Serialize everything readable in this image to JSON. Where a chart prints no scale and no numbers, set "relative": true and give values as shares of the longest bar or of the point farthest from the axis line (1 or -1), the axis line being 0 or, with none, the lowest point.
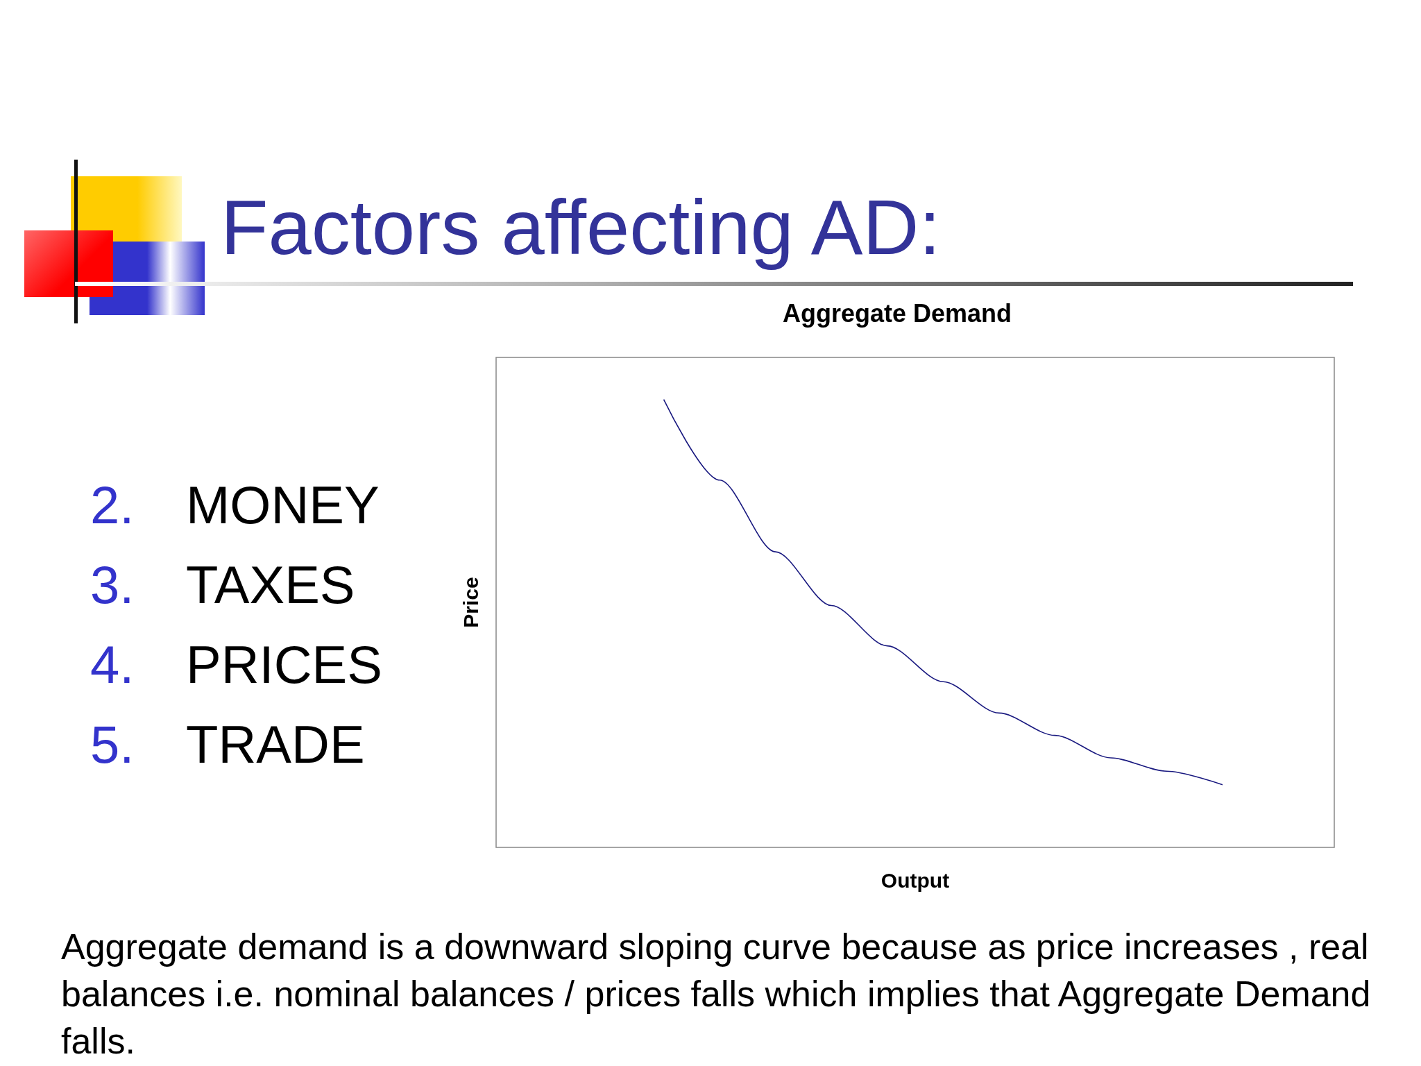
{
  "chart_data": {
    "type": "line",
    "title": "Factors affecting AD:",
    "subtitle": "Aggregate Demand",
    "xlabel": "Output",
    "ylabel": "Price",
    "relative": true,
    "categories": [
      null,
      null,
      null,
      null,
      null,
      null,
      null,
      null,
      null,
      null,
      null,
      null,
      null,
      null,
      null,
      null
    ],
    "series": [
      {
        "color": "#1a1a80",
        "values": [
          null,
          null,
          null,
          1,
          0.82,
          0.66,
          0.54,
          0.45,
          0.37,
          0.3,
          0.25,
          0.2,
          0.17,
          0.14,
          null,
          null
        ]
      }
    ],
    "marker": "none",
    "line_style": "solid",
    "annotations": [
      "2. MONEY",
      "3. TAXES",
      "4. PRICES",
      "5. TRADE",
      "Aggregate demand is a downward sloping curve because as price increases , real balances i.e. nominal balances / prices falls which implies that Aggregate Demand falls."
    ]
  }
}
